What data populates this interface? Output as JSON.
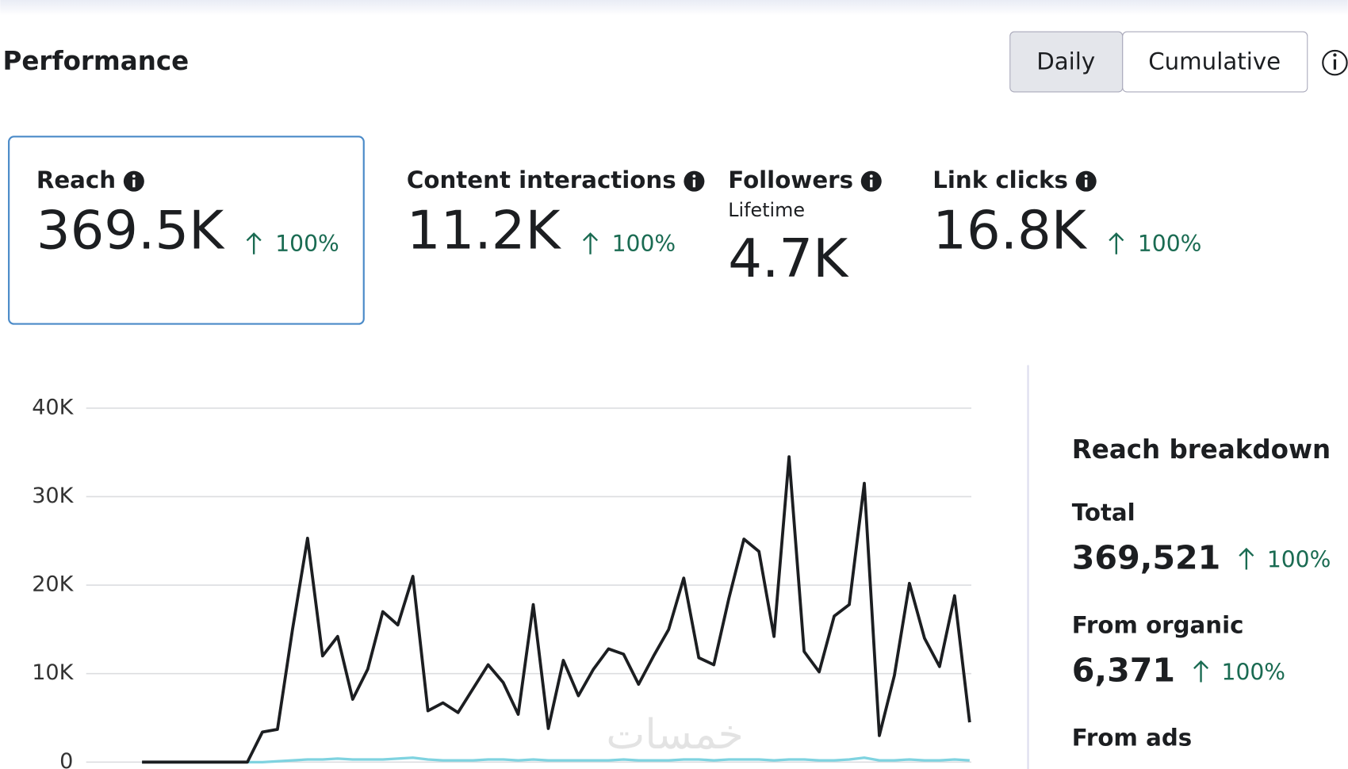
{
  "header": {
    "title": "Performance",
    "toggle": [
      "Daily",
      "Cumulative"
    ]
  },
  "metrics": [
    {
      "label": "Reach",
      "value": "369.5K",
      "change": "100%"
    },
    {
      "label": "Content interactions",
      "value": "11.2K",
      "change": "100%"
    },
    {
      "label": "Followers",
      "sublabel": "Lifetime",
      "value": "4.7K"
    },
    {
      "label": "Link clicks",
      "value": "16.8K",
      "change": "100%"
    }
  ],
  "chart_data": {
    "type": "line",
    "ylim": [
      0,
      40000
    ],
    "yticks": [
      0,
      {
        "value": 10000,
        "label": "10K"
      },
      {
        "value": 20000,
        "label": "20K"
      },
      {
        "value": 30000,
        "label": "30K"
      },
      {
        "value": 40000,
        "label": "40K"
      }
    ],
    "grid": true,
    "series": [
      {
        "color": "#1c1e21",
        "values": [
          0,
          0,
          0,
          0,
          0,
          0,
          0,
          0,
          3400,
          3700,
          15000,
          25300,
          12000,
          14200,
          7100,
          10500,
          17000,
          15500,
          21000,
          5800,
          6700,
          5600,
          8300,
          11000,
          9000,
          5400,
          17800,
          3800,
          11500,
          7500,
          10500,
          12800,
          12200,
          8800,
          12000,
          15000,
          20800,
          11800,
          11000,
          18500,
          25200,
          23800,
          14200,
          34500,
          12500,
          10200,
          16500,
          17800,
          31500,
          3000,
          9800,
          20200,
          14000,
          10800,
          18800,
          4500
        ]
      },
      {
        "color": "#7fd3e0",
        "values": [
          0,
          0,
          0,
          0,
          0,
          0,
          0,
          0,
          0,
          100,
          200,
          300,
          300,
          400,
          300,
          300,
          300,
          400,
          500,
          300,
          200,
          200,
          200,
          300,
          300,
          200,
          300,
          200,
          200,
          200,
          200,
          200,
          300,
          200,
          200,
          200,
          300,
          300,
          200,
          300,
          300,
          300,
          200,
          300,
          300,
          200,
          200,
          300,
          500,
          200,
          200,
          300,
          200,
          200,
          300,
          200
        ]
      }
    ]
  },
  "breakdown": {
    "title": "Reach breakdown",
    "items": [
      {
        "label": "Total",
        "value": "369,521",
        "change": "100%"
      },
      {
        "label": "From organic",
        "value": "6,371",
        "change": "100%"
      },
      {
        "label": "From ads"
      }
    ]
  },
  "watermark": "خمسات"
}
